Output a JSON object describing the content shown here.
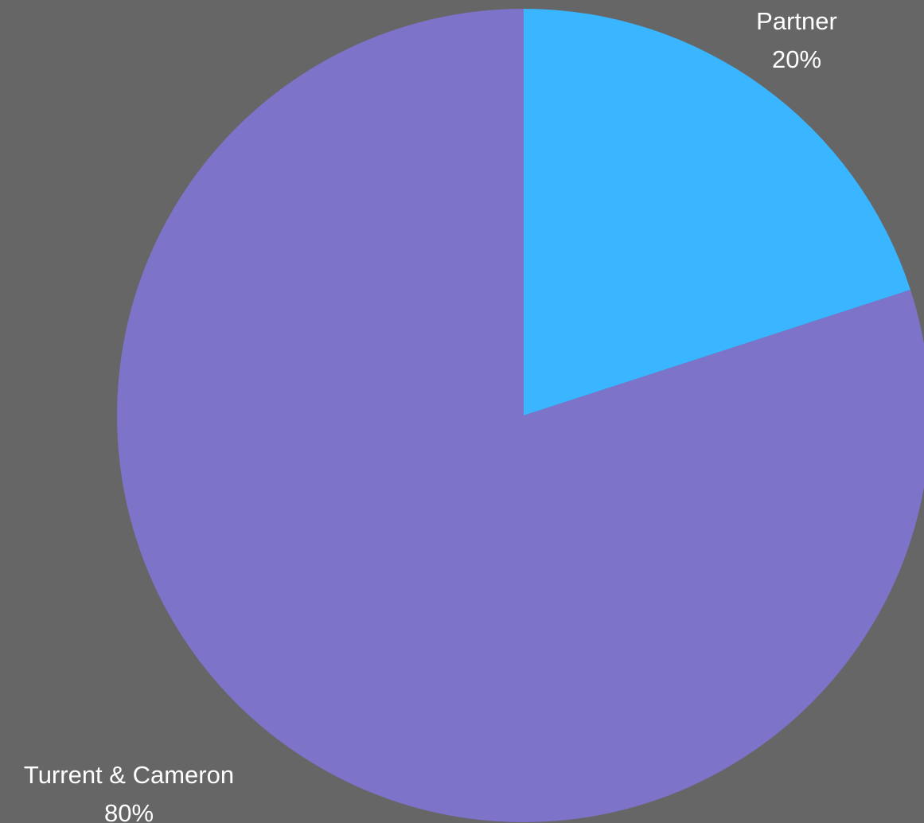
{
  "chart_data": {
    "type": "pie",
    "background_color": "#666666",
    "slices": [
      {
        "name": "Partner",
        "value": 20,
        "label": "20%",
        "color": "#3ab5ff"
      },
      {
        "name": "Turrent & Cameron",
        "value": 80,
        "label": "80%",
        "color": "#7d73c8"
      }
    ],
    "start_angle_deg": 0,
    "direction": "clockwise",
    "legend": "none",
    "title": ""
  }
}
